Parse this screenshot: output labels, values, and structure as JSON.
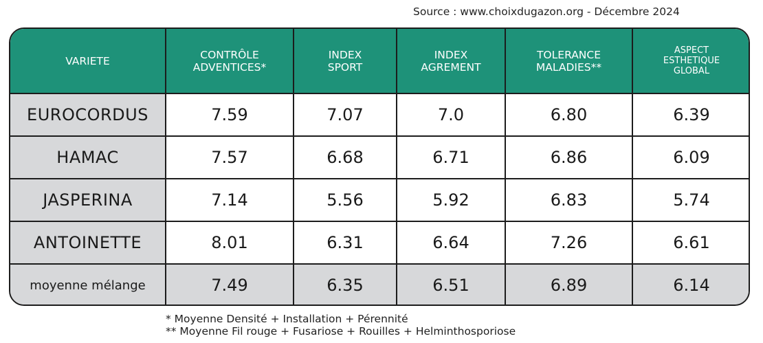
{
  "source": "Source : www.choixdugazon.org - Décembre 2024",
  "chart_data": {
    "type": "table",
    "columns": [
      {
        "lines": [
          "VARIETE"
        ]
      },
      {
        "lines": [
          "CONTRÔLE",
          "ADVENTICES*"
        ]
      },
      {
        "lines": [
          "INDEX",
          "SPORT"
        ]
      },
      {
        "lines": [
          "INDEX",
          "AGREMENT"
        ]
      },
      {
        "lines": [
          "TOLERANCE",
          "MALADIES**"
        ]
      },
      {
        "lines": [
          "ASPECT",
          "ESTHETIQUE",
          "GLOBAL"
        ]
      }
    ],
    "rows": [
      {
        "name": "EUROCORDUS",
        "values": [
          "7.59",
          "7.07",
          "7.0",
          "6.80",
          "6.39"
        ]
      },
      {
        "name": "HAMAC",
        "values": [
          "7.57",
          "6.68",
          "6.71",
          "6.86",
          "6.09"
        ]
      },
      {
        "name": "JASPERINA",
        "values": [
          "7.14",
          "5.56",
          "5.92",
          "6.83",
          "5.74"
        ]
      },
      {
        "name": "ANTOINETTE",
        "values": [
          "8.01",
          "6.31",
          "6.64",
          "7.26",
          "6.61"
        ]
      },
      {
        "name": "moyenne mélange",
        "values": [
          "7.49",
          "6.35",
          "6.51",
          "6.89",
          "6.14"
        ]
      }
    ]
  },
  "footnotes": [
    "* Moyenne Densité + Installation + Pérennité",
    "** Moyenne Fil rouge + Fusariose + Rouilles + Helminthosporiose"
  ],
  "colors": {
    "header": "#1e9279",
    "header_text": "#ffffff",
    "shaded_cell": "#d7d8da",
    "border": "#1c1c1c"
  }
}
